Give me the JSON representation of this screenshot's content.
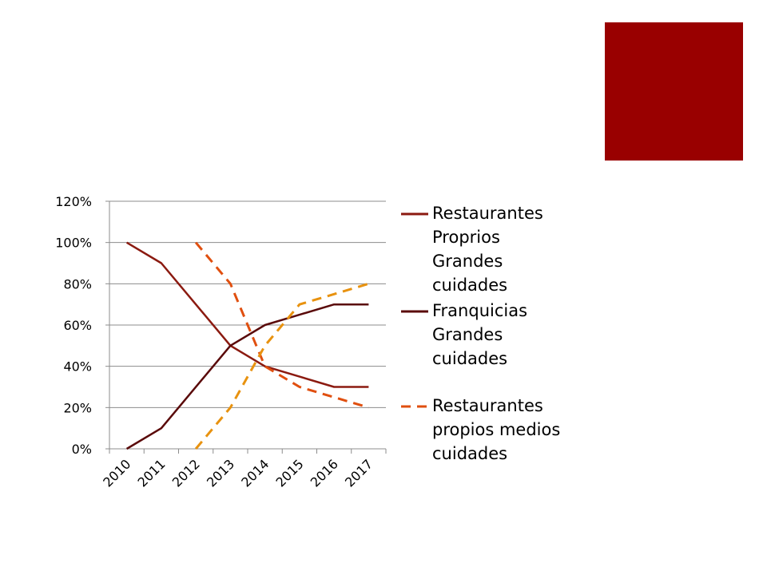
{
  "slide": {
    "accent_color": "#990000"
  },
  "chart_data": {
    "type": "line",
    "categories": [
      "2010",
      "2011",
      "2012",
      "2013",
      "2014",
      "2015",
      "2016",
      "2017"
    ],
    "y_axis": {
      "ticks": [
        0,
        20,
        40,
        60,
        80,
        100,
        120
      ],
      "tick_labels": [
        "0%",
        "20%",
        "40%",
        "60%",
        "80%",
        "100%",
        "120%"
      ],
      "ylim": [
        0,
        120
      ]
    },
    "grid": true,
    "legend_position": "right",
    "series": [
      {
        "name": "Restaurantes Proprios Grandes cuidades",
        "legend_lines": [
          "Restaurantes",
          "Proprios",
          "Grandes",
          "cuidades"
        ],
        "color": "#8B1A10",
        "dashed": false,
        "x": [
          2010,
          2011,
          2013,
          2014,
          2015,
          2016,
          2017
        ],
        "values": [
          100,
          90,
          50,
          40,
          35,
          30,
          30
        ]
      },
      {
        "name": "Franquicias Grandes cuidades",
        "legend_lines": [
          "Franquicias",
          "Grandes",
          "cuidades"
        ],
        "color": "#5A0A0A",
        "dashed": false,
        "x": [
          2010,
          2011,
          2013,
          2014,
          2015,
          2016,
          2017
        ],
        "values": [
          0,
          10,
          50,
          60,
          65,
          70,
          70
        ]
      },
      {
        "name": "Restaurantes propios medios cuidades",
        "legend_lines": [
          "Restaurantes",
          "propios medios",
          "cuidades"
        ],
        "color": "#E04F0F",
        "dashed": true,
        "x": [
          2012,
          2013,
          2013.75,
          2014,
          2015,
          2016,
          2017
        ],
        "values": [
          100,
          80,
          50,
          40,
          30,
          25,
          20
        ]
      },
      {
        "name": "",
        "legend_lines": [],
        "color": "#E8920F",
        "dashed": true,
        "x": [
          2012,
          2013,
          2014,
          2014.5,
          2015,
          2016,
          2017
        ],
        "values": [
          0,
          20,
          50,
          60,
          70,
          75,
          80
        ]
      }
    ]
  }
}
